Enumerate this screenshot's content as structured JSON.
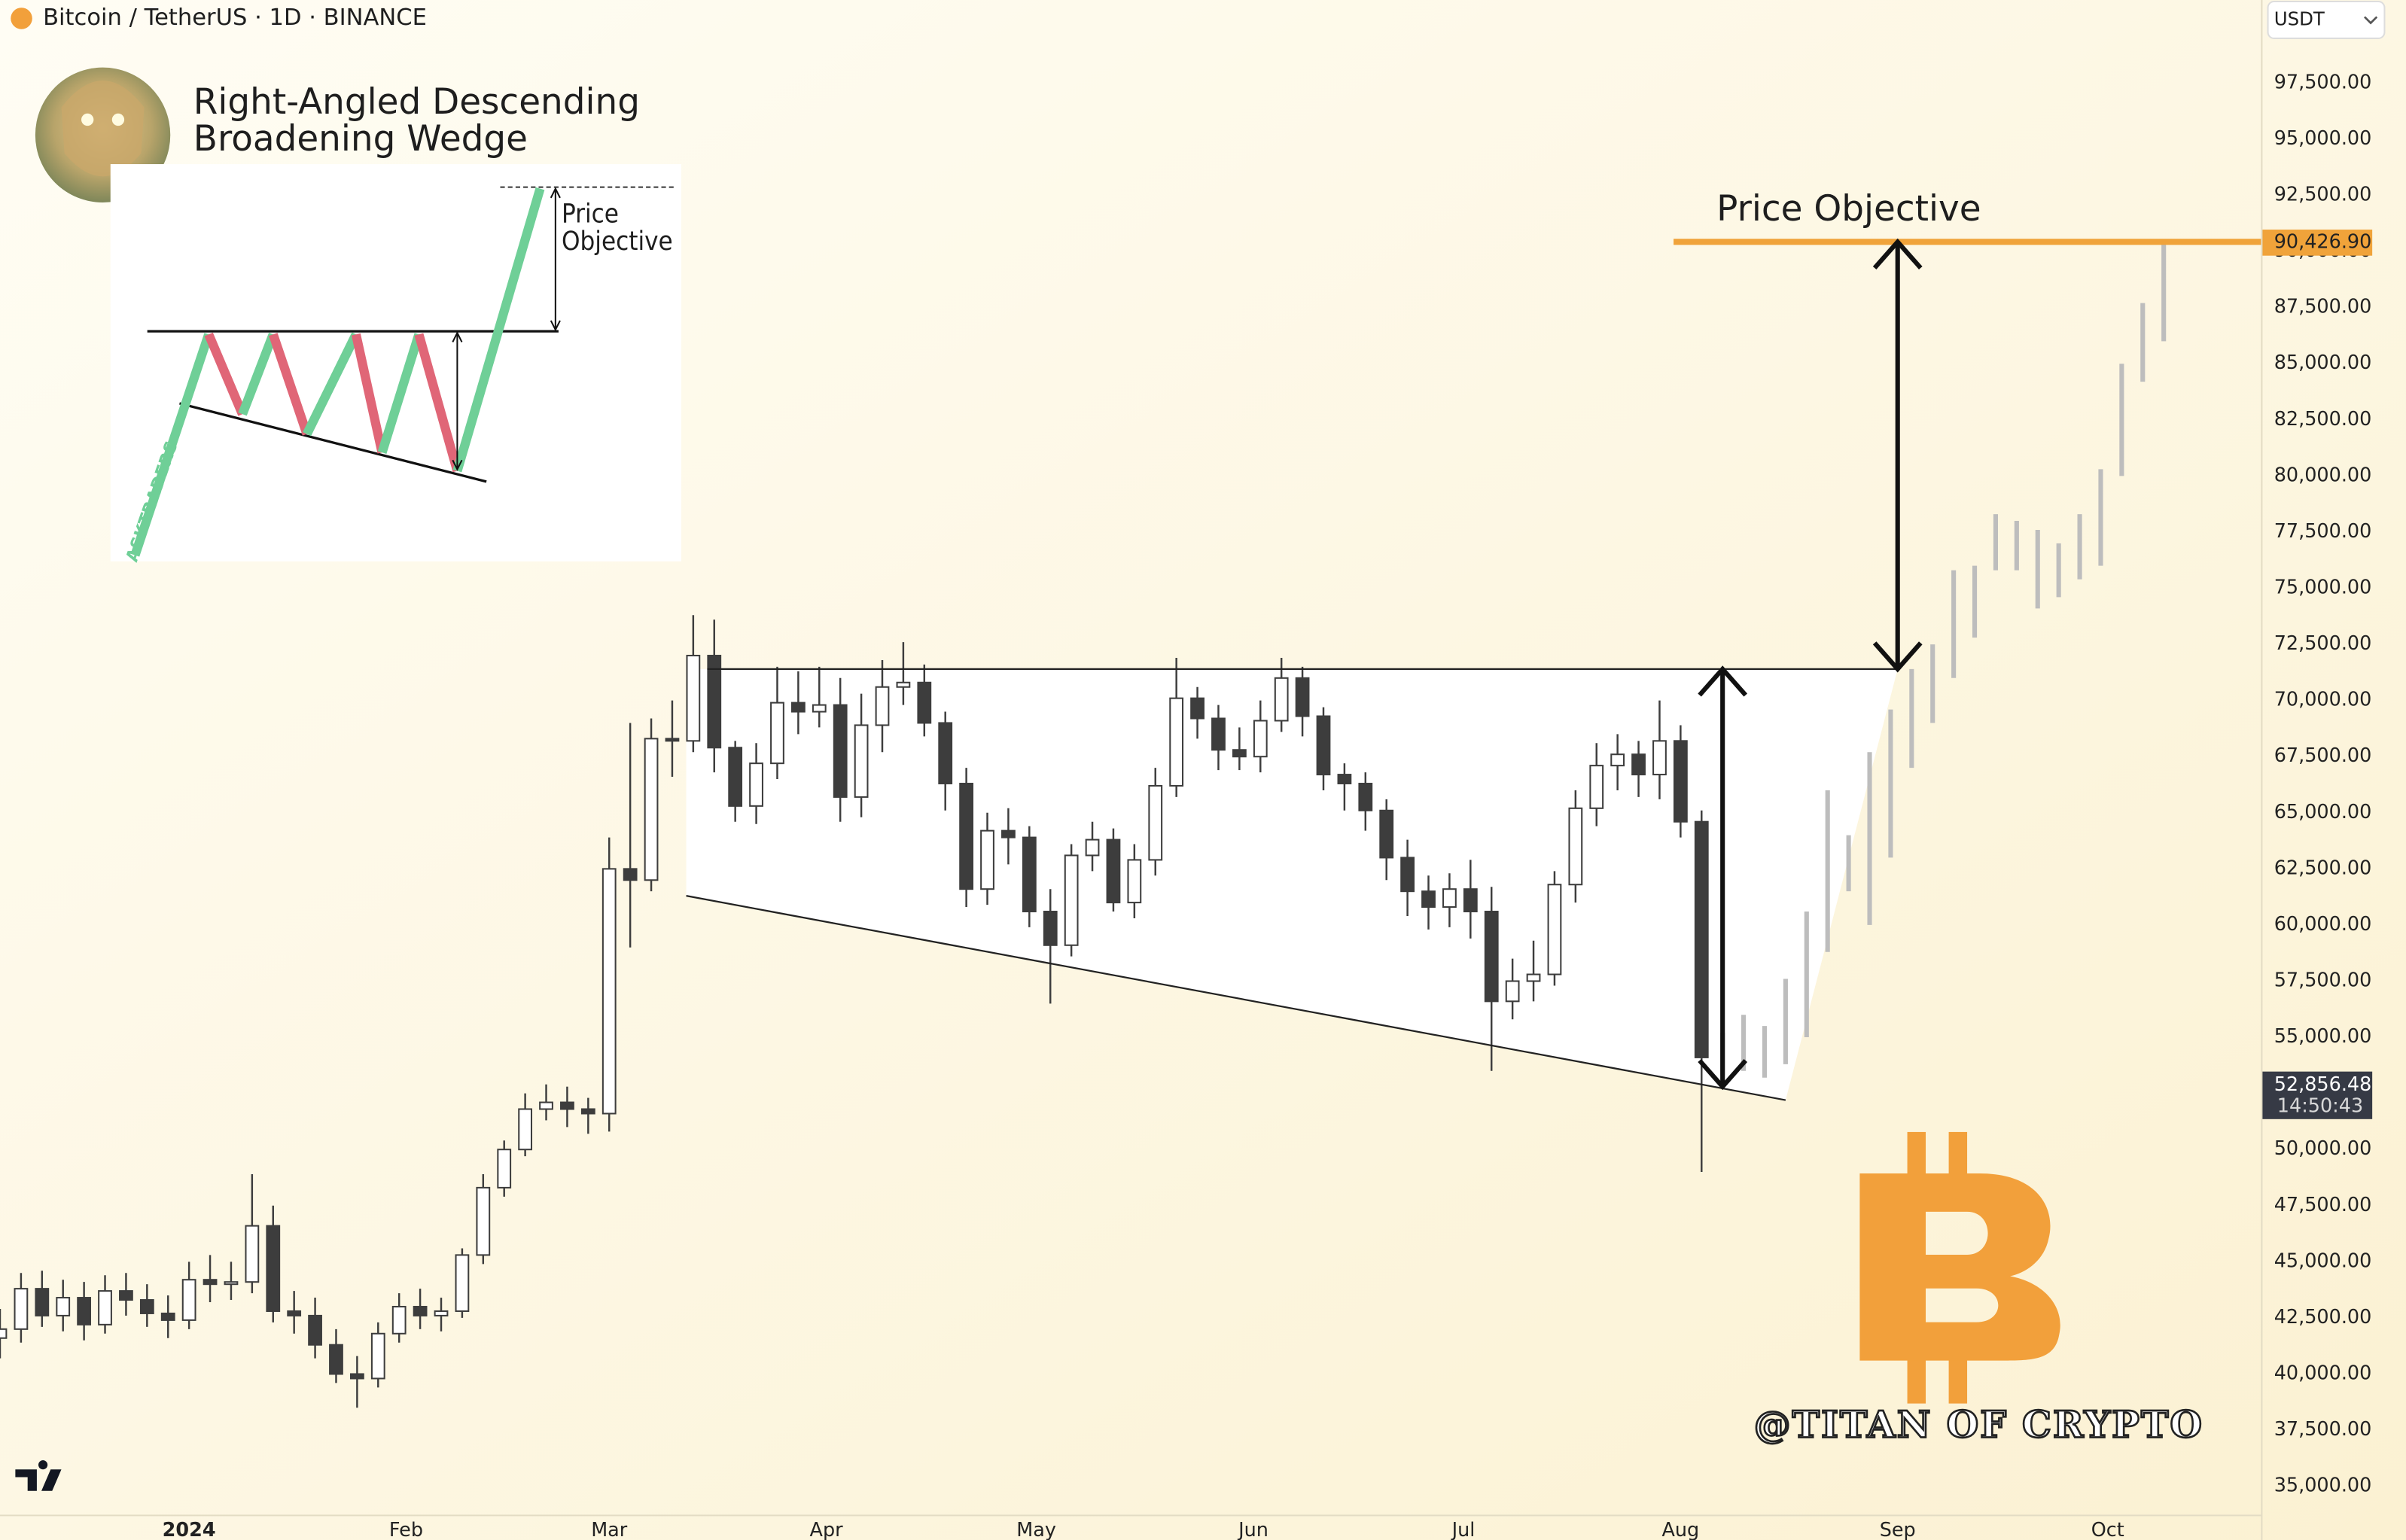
{
  "header": {
    "symbol": "Bitcoin / TetherUS · 1D · BINANCE",
    "currency": "USDT"
  },
  "inset": {
    "title_lines": [
      "Right-Angled Descending",
      "Broadening Wedge"
    ],
    "label_lines": [
      "Price",
      "Objective"
    ],
    "watermark": "ASKTRADERS"
  },
  "chart_data": {
    "type": "candlestick",
    "x": [
      -27,
      -24,
      -21,
      -18,
      -15,
      -12,
      -9,
      -6,
      -3,
      0,
      3,
      6,
      9,
      12,
      15,
      18,
      21,
      24,
      27,
      30,
      33,
      36,
      39,
      42,
      45,
      48,
      51,
      54,
      57,
      60,
      63,
      66,
      69,
      72,
      75,
      78,
      81,
      84,
      87,
      90,
      93,
      96,
      99,
      102,
      105,
      108,
      111,
      114,
      117,
      120,
      123,
      126,
      129,
      132,
      135,
      138,
      141,
      144,
      147,
      150,
      153,
      156,
      159,
      162,
      165,
      168,
      171,
      174,
      177,
      180,
      183,
      186,
      189,
      192,
      195,
      198,
      201,
      204,
      207,
      210,
      213,
      216
    ],
    "open": [
      41600,
      42000,
      43800,
      42600,
      43400,
      42200,
      43700,
      43300,
      42700,
      42400,
      44200,
      44000,
      44100,
      46600,
      42800,
      42600,
      41300,
      40000,
      39800,
      41800,
      43000,
      42600,
      42800,
      45300,
      48300,
      50000,
      51800,
      52100,
      51800,
      51600,
      62500,
      62000,
      68300,
      68200,
      72000,
      67900,
      65300,
      67200,
      69900,
      69500,
      69800,
      65700,
      68900,
      70600,
      70800,
      69000,
      66300,
      61600,
      64200,
      63900,
      60600,
      59100,
      63100,
      63800,
      61000,
      62900,
      66200,
      70100,
      69200,
      67800,
      67500,
      69100,
      71000,
      69300,
      66700,
      66300,
      65100,
      63000,
      61500,
      60800,
      61600,
      60600,
      56600,
      57500,
      57800,
      61800,
      65200,
      67100,
      67600,
      66700,
      68200,
      64600
    ],
    "high": [
      42900,
      44500,
      44600,
      44200,
      44100,
      44400,
      44500,
      44000,
      43500,
      45000,
      45300,
      45000,
      48900,
      47500,
      43700,
      43400,
      42000,
      40800,
      42300,
      43600,
      43800,
      43400,
      45600,
      48900,
      50400,
      52500,
      52900,
      52800,
      52300,
      63900,
      69000,
      69200,
      70000,
      73800,
      73600,
      68200,
      68100,
      71500,
      71300,
      71500,
      71000,
      70300,
      71800,
      72600,
      71600,
      69500,
      67000,
      65000,
      65200,
      64400,
      61600,
      63600,
      64600,
      64300,
      63600,
      67000,
      71900,
      70600,
      69800,
      68800,
      70000,
      71900,
      71500,
      69700,
      67200,
      66800,
      65600,
      63800,
      62200,
      62300,
      62900,
      61700,
      58500,
      59300,
      62400,
      66000,
      68100,
      68500,
      68200,
      70000,
      68900,
      65100
    ],
    "low": [
      40700,
      41400,
      42100,
      41900,
      41500,
      41800,
      42600,
      42100,
      41600,
      42000,
      43200,
      43300,
      43600,
      42300,
      41800,
      40700,
      39600,
      38500,
      39400,
      41400,
      42000,
      41900,
      42500,
      44900,
      47900,
      49700,
      51300,
      51000,
      50700,
      50800,
      59000,
      61500,
      66600,
      67700,
      66800,
      64600,
      64500,
      66500,
      68500,
      68800,
      64600,
      64800,
      67700,
      69800,
      68400,
      65100,
      60800,
      60900,
      62700,
      59900,
      56500,
      58600,
      62400,
      60600,
      60300,
      62200,
      65700,
      68300,
      66900,
      66900,
      66800,
      68600,
      68400,
      66000,
      65100,
      64200,
      62000,
      60400,
      59800,
      59900,
      59400,
      53500,
      55800,
      56600,
      57300,
      61000,
      64400,
      66000,
      65700,
      65600,
      63900,
      49000
    ],
    "close": [
      42000,
      43800,
      42600,
      43400,
      42200,
      43700,
      43300,
      42700,
      42400,
      44200,
      44000,
      44100,
      46600,
      42800,
      42600,
      41300,
      40000,
      39800,
      41800,
      43000,
      42600,
      42800,
      45300,
      48300,
      50000,
      51800,
      52100,
      51800,
      51600,
      62500,
      62000,
      68300,
      68200,
      72000,
      67900,
      65300,
      67200,
      69900,
      69500,
      69800,
      65700,
      68900,
      70600,
      70800,
      69000,
      66300,
      61600,
      64200,
      63900,
      60600,
      59100,
      63100,
      63800,
      61000,
      62900,
      66200,
      70100,
      69200,
      67800,
      67500,
      69100,
      71000,
      69300,
      66700,
      66300,
      65100,
      63000,
      61500,
      60800,
      61600,
      60600,
      56600,
      57500,
      57800,
      61800,
      65200,
      67100,
      67600,
      66700,
      68200,
      64600,
      54100
    ],
    "colors": {
      "up": "#ffffff",
      "down": "#3d3d3d",
      "wick": "#3d3d3d"
    },
    "projection": {
      "x": [
        219,
        222,
        225,
        228,
        231,
        234,
        237,
        240,
        243,
        246,
        249,
        252,
        255,
        258,
        261,
        264,
        267,
        270,
        273,
        276,
        279,
        282
      ],
      "high": [
        55200,
        56000,
        55500,
        57600,
        60600,
        66000,
        64000,
        67700,
        69600,
        71400,
        72500,
        75800,
        76000,
        78300,
        78000,
        77600,
        77000,
        78300,
        80300,
        85000,
        87700,
        90400
      ],
      "low": [
        53300,
        53500,
        53200,
        53800,
        55000,
        58800,
        61500,
        60000,
        63000,
        67000,
        69000,
        71000,
        72800,
        75800,
        75800,
        74100,
        74600,
        75400,
        76000,
        80000,
        84200,
        86000
      ],
      "color": "#bdbdbd"
    },
    "xlim": [
      -27,
      296
    ],
    "xticks": [
      {
        "value": 0,
        "label": "2024"
      },
      {
        "value": 31,
        "label": "Feb"
      },
      {
        "value": 60,
        "label": "Mar"
      },
      {
        "value": 91,
        "label": "Apr"
      },
      {
        "value": 121,
        "label": "May"
      },
      {
        "value": 152,
        "label": "Jun"
      },
      {
        "value": 182,
        "label": "Jul"
      },
      {
        "value": 213,
        "label": "Aug"
      },
      {
        "value": 244,
        "label": "Sep"
      },
      {
        "value": 274,
        "label": "Oct"
      }
    ],
    "ylim": [
      33700,
      101200
    ],
    "yticks": [
      {
        "value": 35000,
        "label": "35,000.00"
      },
      {
        "value": 37500,
        "label": "37,500.00"
      },
      {
        "value": 40000,
        "label": "40,000.00"
      },
      {
        "value": 42500,
        "label": "42,500.00"
      },
      {
        "value": 45000,
        "label": "45,000.00"
      },
      {
        "value": 47500,
        "label": "47,500.00"
      },
      {
        "value": 50000,
        "label": "50,000.00"
      },
      {
        "value": 52500,
        "label": "52,500.00"
      },
      {
        "value": 55000,
        "label": "55,000.00"
      },
      {
        "value": 57500,
        "label": "57,500.00"
      },
      {
        "value": 60000,
        "label": "60,000.00"
      },
      {
        "value": 62500,
        "label": "62,500.00"
      },
      {
        "value": 65000,
        "label": "65,000.00"
      },
      {
        "value": 67500,
        "label": "67,500.00"
      },
      {
        "value": 70000,
        "label": "70,000.00"
      },
      {
        "value": 72500,
        "label": "72,500.00"
      },
      {
        "value": 75000,
        "label": "75,000.00"
      },
      {
        "value": 77500,
        "label": "77,500.00"
      },
      {
        "value": 80000,
        "label": "80,000.00"
      },
      {
        "value": 82500,
        "label": "82,500.00"
      },
      {
        "value": 85000,
        "label": "85,000.00"
      },
      {
        "value": 87500,
        "label": "87,500.00"
      },
      {
        "value": 90000,
        "label": "90,000.00"
      },
      {
        "value": 92500,
        "label": "92,500.00"
      },
      {
        "value": 95000,
        "label": "95,000.00"
      },
      {
        "value": 97500,
        "label": "97,500.00"
      }
    ],
    "grid": false,
    "trendlines": [
      {
        "x": [
          74,
          244
        ],
        "y": [
          71400,
          71400
        ]
      },
      {
        "x": [
          71,
          228
        ],
        "y": [
          61300,
          52200
        ]
      }
    ],
    "arrows": [
      {
        "x": 219,
        "y": [
          71400,
          52800
        ]
      },
      {
        "x": 244,
        "y": [
          90426.9,
          71400
        ]
      }
    ],
    "price_objective": {
      "label": "Price Objective",
      "value": 90426.9,
      "value_label": "90,426.90",
      "x_start": 212,
      "color": "#f0a33a"
    },
    "last_price": {
      "value": 52856.48,
      "value_label": "52,856.48",
      "countdown": "14:50:43"
    },
    "watermark": "@TITAN OF CRYPTO"
  }
}
